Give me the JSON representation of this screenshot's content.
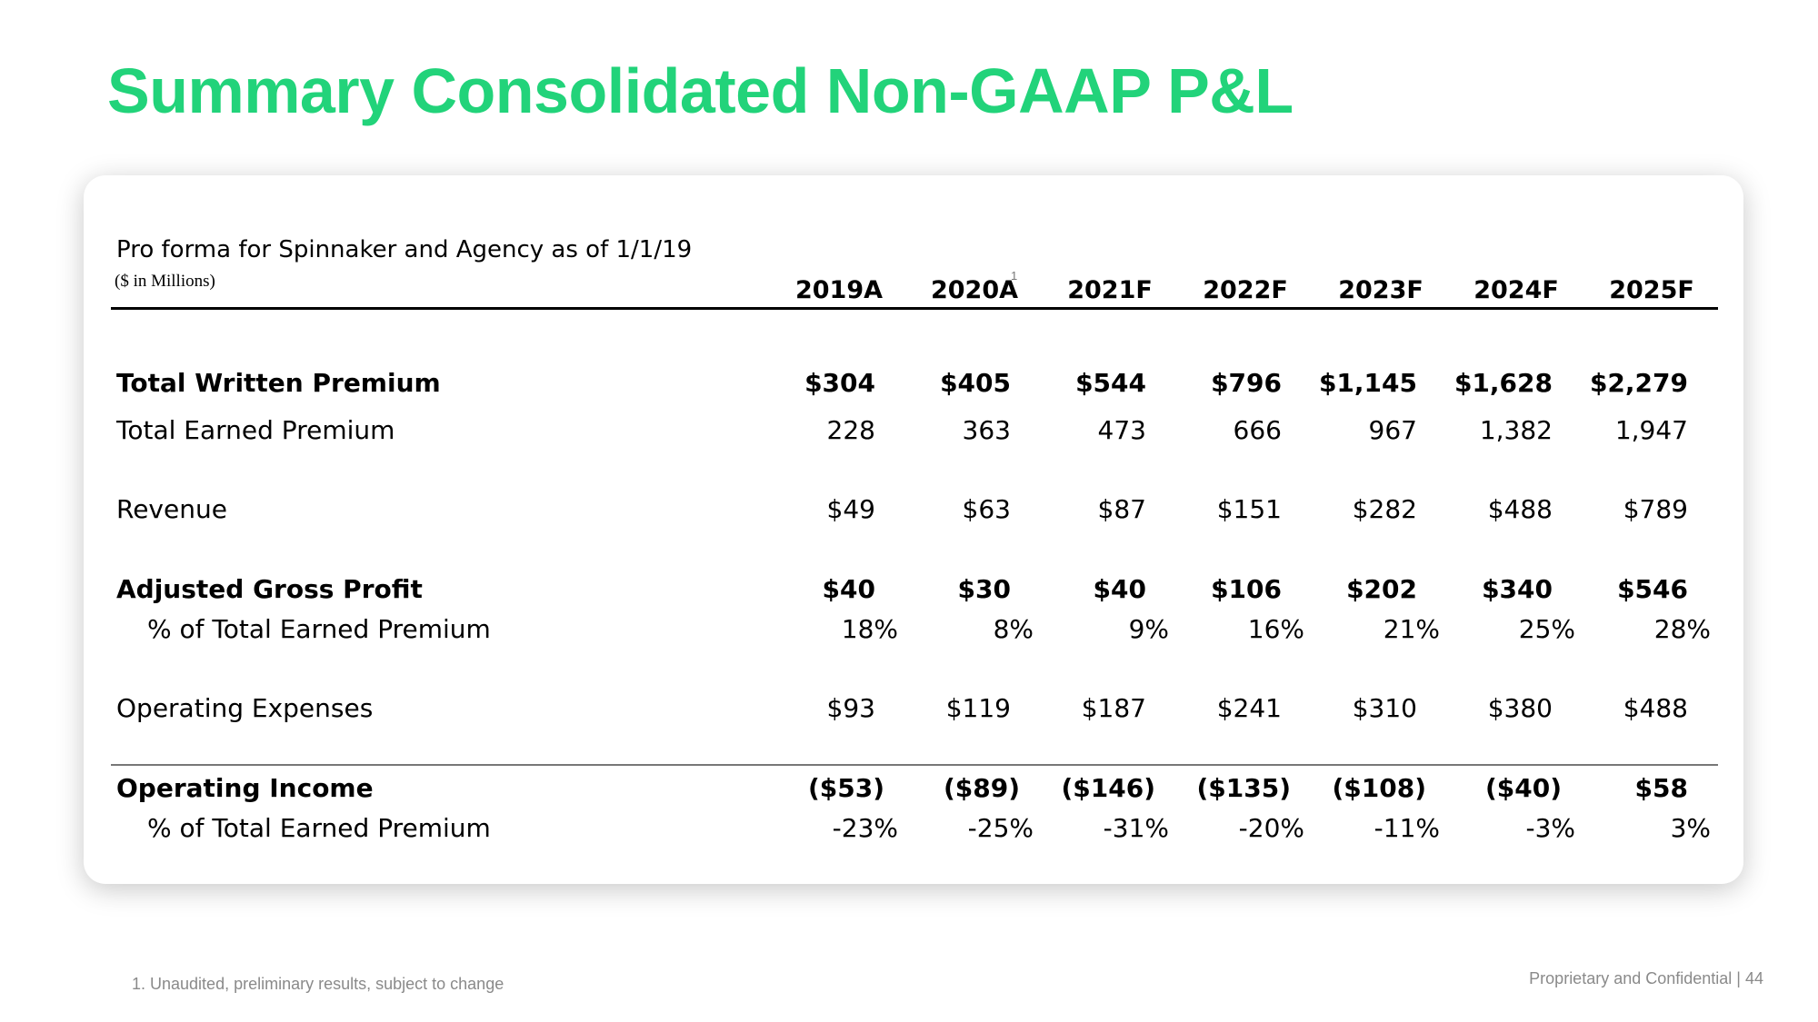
{
  "title": "Summary Consolidated Non-GAAP P&L",
  "table": {
    "subtitle": "Pro forma for Spinnaker and Agency as of 1/1/19",
    "units": "($ in Millions)",
    "years": [
      "2019A",
      "2020A",
      "2021F",
      "2022F",
      "2023F",
      "2024F",
      "2025F"
    ],
    "year_footnote_marker": "1",
    "rows": [
      {
        "label": "Total Written Premium",
        "values": [
          "$304",
          "$405",
          "$544",
          "$796",
          "$1,145",
          "$1,628",
          "$2,279"
        ]
      },
      {
        "label": "Total Earned Premium",
        "values": [
          "228",
          "363",
          "473",
          "666",
          "967",
          "1,382",
          "1,947"
        ]
      },
      {
        "label": "Revenue",
        "values": [
          "$49",
          "$63",
          "$87",
          "$151",
          "$282",
          "$488",
          "$789"
        ]
      },
      {
        "label": "Adjusted Gross Profit",
        "values": [
          "$40",
          "$30",
          "$40",
          "$106",
          "$202",
          "$340",
          "$546"
        ]
      },
      {
        "label": "% of Total Earned Premium",
        "values": [
          "18%",
          "8%",
          "9%",
          "16%",
          "21%",
          "25%",
          "28%"
        ]
      },
      {
        "label": "Operating Expenses",
        "values": [
          "$93",
          "$119",
          "$187",
          "$241",
          "$310",
          "$380",
          "$488"
        ]
      },
      {
        "label": "Operating Income",
        "values": [
          "($53)",
          "($89)",
          "($146)",
          "($135)",
          "($108)",
          "($40)",
          "$58"
        ]
      },
      {
        "label": "% of Total Earned Premium",
        "values": [
          "-23%",
          "-25%",
          "-31%",
          "-20%",
          "-11%",
          "-3%",
          "3%"
        ]
      }
    ]
  },
  "footnote": "1. Unaudited, preliminary results, subject to change",
  "confidential": "Proprietary and Confidential | 44",
  "colors": {
    "title": "#22d37a"
  }
}
